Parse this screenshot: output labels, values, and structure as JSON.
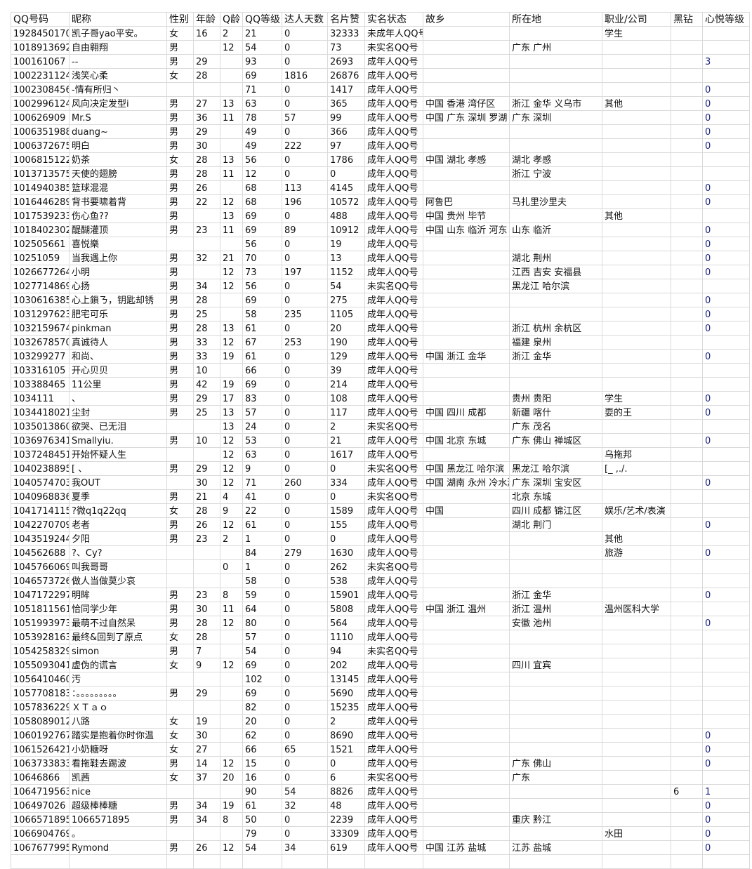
{
  "sheet": {
    "headers": [
      "QQ号码",
      "昵称",
      "性别",
      "年龄",
      "Q龄",
      "QQ等级",
      "达人天数",
      "名片赞",
      "实名状态",
      "故乡",
      "所在地",
      "职业/公司",
      "黑钻",
      "心悦等级"
    ],
    "rows": [
      [
        "1928450170",
        "凯子哥yao平安。",
        "女",
        "16",
        "2",
        "21",
        "0",
        "32333",
        "未成年人QQ号",
        "",
        "",
        "学生",
        "",
        ""
      ],
      [
        "1018913692",
        "自由翱翔",
        "男",
        "",
        "12",
        "54",
        "0",
        "73",
        "未实名QQ号",
        "",
        "广东 广州",
        "",
        "",
        ""
      ],
      [
        "100161067",
        "--",
        "男",
        "29",
        "",
        "93",
        "0",
        "2693",
        "成年人QQ号",
        "",
        "",
        "",
        "",
        "3"
      ],
      [
        "1002231124",
        "浅笑心柔",
        "女",
        "28",
        "",
        "69",
        "1816",
        "26876",
        "成年人QQ号",
        "",
        "",
        "",
        "",
        ""
      ],
      [
        "1002308456",
        "-情有所归丶",
        "",
        "",
        "",
        "71",
        "0",
        "1417",
        "成年人QQ号",
        "",
        "",
        "",
        "",
        "0"
      ],
      [
        "1002996124",
        "风向决定发型i",
        "男",
        "27",
        "13",
        "63",
        "0",
        "365",
        "成年人QQ号",
        "中国 香港 湾仔区",
        "浙江 金华 义乌市",
        "其他",
        "",
        "0"
      ],
      [
        "100626909",
        "Mr.S",
        "男",
        "36",
        "11",
        "78",
        "57",
        "99",
        "成年人QQ号",
        "中国 广东 深圳 罗湖",
        "广东 深圳",
        "",
        "",
        "0"
      ],
      [
        "1006351988",
        "duang~",
        "男",
        "29",
        "",
        "49",
        "0",
        "366",
        "成年人QQ号",
        "",
        "",
        "",
        "",
        "0"
      ],
      [
        "1006372675",
        "明白",
        "男",
        "30",
        "",
        "49",
        "222",
        "97",
        "成年人QQ号",
        "",
        "",
        "",
        "",
        "0"
      ],
      [
        "1006815122",
        "奶茶",
        "女",
        "28",
        "13",
        "56",
        "0",
        "1786",
        "成年人QQ号",
        "中国 湖北 孝感",
        "湖北 孝感",
        "",
        "",
        ""
      ],
      [
        "1013713575",
        "天使的翅膀",
        "男",
        "28",
        "11",
        "12",
        "0",
        "0",
        "成年人QQ号",
        "",
        "浙江 宁波",
        "",
        "",
        ""
      ],
      [
        "1014940385",
        "篮球混混",
        "男",
        "26",
        "",
        "68",
        "113",
        "4145",
        "成年人QQ号",
        "",
        "",
        "",
        "",
        "0"
      ],
      [
        "1016446289",
        "背书要啸着背",
        "男",
        "22",
        "12",
        "68",
        "196",
        "10572",
        "成年人QQ号",
        "阿鲁巴",
        "马扎里沙里夫",
        "",
        "",
        "0"
      ],
      [
        "1017539233",
        "伤心鱼??",
        "男",
        "",
        "13",
        "69",
        "0",
        "488",
        "成年人QQ号",
        "中国 贵州 毕节",
        "",
        "其他",
        "",
        ""
      ],
      [
        "1018402302",
        "醍醐灌顶",
        "男",
        "23",
        "11",
        "69",
        "89",
        "10912",
        "成年人QQ号",
        "中国 山东 临沂 河东",
        "山东 临沂",
        "",
        "",
        "0"
      ],
      [
        "102505661",
        "喜悦樂",
        "",
        "",
        "",
        "56",
        "0",
        "19",
        "成年人QQ号",
        "",
        "",
        "",
        "",
        "0"
      ],
      [
        "10251059",
        "当我遇上你",
        "男",
        "32",
        "21",
        "70",
        "0",
        "13",
        "成年人QQ号",
        "",
        "湖北 荆州",
        "",
        "",
        "0"
      ],
      [
        "1026677264",
        "小明",
        "男",
        "",
        "12",
        "73",
        "197",
        "1152",
        "成年人QQ号",
        "",
        "江西 吉安 安福县",
        "",
        "",
        "0"
      ],
      [
        "1027714869",
        "心扬",
        "男",
        "34",
        "12",
        "56",
        "0",
        "54",
        "未实名QQ号",
        "",
        "黑龙江 哈尔滨",
        "",
        "",
        ""
      ],
      [
        "1030616385",
        "心上鎖ㄋ，钥匙却锈",
        "男",
        "28",
        "",
        "69",
        "0",
        "275",
        "成年人QQ号",
        "",
        "",
        "",
        "",
        "0"
      ],
      [
        "1031297623",
        "肥宅可乐",
        "男",
        "25",
        "",
        "58",
        "235",
        "1105",
        "成年人QQ号",
        "",
        "",
        "",
        "",
        "0"
      ],
      [
        "1032159674",
        "pinkman",
        "男",
        "28",
        "13",
        "61",
        "0",
        "20",
        "成年人QQ号",
        "",
        "浙江 杭州 余杭区",
        "",
        "",
        "0"
      ],
      [
        "1032678570",
        "真诚待人",
        "男",
        "33",
        "12",
        "67",
        "253",
        "190",
        "成年人QQ号",
        "",
        "福建 泉州",
        "",
        "",
        ""
      ],
      [
        "103299277",
        "  和尚、",
        "男",
        "33",
        "19",
        "61",
        "0",
        "129",
        "成年人QQ号",
        "中国 浙江 金华",
        "浙江 金华",
        "",
        "",
        "0"
      ],
      [
        "103316105",
        "开心贝贝",
        "男",
        "10",
        "",
        "66",
        "0",
        "39",
        "成年人QQ号",
        "",
        "",
        "",
        "",
        ""
      ],
      [
        "103388465",
        "11公里",
        "男",
        "42",
        "19",
        "69",
        "0",
        "214",
        "成年人QQ号",
        "",
        "",
        "",
        "",
        ""
      ],
      [
        "1034111",
        "、",
        "男",
        "29",
        "17",
        "83",
        "0",
        "108",
        "成年人QQ号",
        "",
        "贵州 贵阳",
        "学生",
        "",
        "0"
      ],
      [
        "1034418021",
        "尘封",
        "男",
        "25",
        "13",
        "57",
        "0",
        "117",
        "成年人QQ号",
        "中国 四川 成都",
        "新疆 喀什",
        "耍的王",
        "",
        "0"
      ],
      [
        "1035013860",
        "欲哭、已无泪",
        "",
        "",
        "13",
        "24",
        "0",
        "2",
        "未实名QQ号",
        "",
        "广东 茂名",
        "",
        "",
        ""
      ],
      [
        "1036976341",
        " Smallyiu.",
        "男",
        "10",
        "12",
        "53",
        "0",
        "21",
        "成年人QQ号",
        "中国 北京 东城",
        "广东 佛山 禅城区",
        "",
        "",
        "0"
      ],
      [
        "1037248451",
        "开始怀疑人生",
        "",
        "",
        "12",
        "63",
        "0",
        "1617",
        "成年人QQ号",
        "",
        "",
        "乌拖邦",
        "",
        ""
      ],
      [
        "1040238895",
        "  [ 、",
        "男",
        "29",
        "12",
        "9",
        "0",
        "0",
        "未实名QQ号",
        "中国 黑龙江 哈尔滨",
        "黑龙江 哈尔滨",
        "[_ ,./.",
        "",
        ""
      ],
      [
        "1040574703",
        "我OUT",
        "",
        "30",
        "12",
        "71",
        "260",
        "334",
        "成年人QQ号",
        "中国 湖南 永州 冷水滩",
        "广东 深圳 宝安区",
        "",
        "",
        "0"
      ],
      [
        "1040968836",
        "夏季",
        "男",
        "21",
        "4",
        "41",
        "0",
        "0",
        "未实名QQ号",
        "",
        "北京 东城",
        "",
        "",
        ""
      ],
      [
        "1041714115",
        "?微q1q22qq",
        "女",
        "28",
        "9",
        "22",
        "0",
        "1589",
        "成年人QQ号",
        "中国",
        "四川 成都 锦江区",
        "娱乐/艺术/表演",
        "",
        ""
      ],
      [
        "1042270709",
        "老者",
        "男",
        "26",
        "12",
        "61",
        "0",
        "155",
        "成年人QQ号",
        "",
        "湖北 荆门",
        "",
        "",
        "0"
      ],
      [
        "1043519244",
        "夕阳",
        "男",
        "23",
        "2",
        "1",
        "0",
        "0",
        "成年人QQ号",
        "",
        "",
        "其他",
        "",
        ""
      ],
      [
        "104562688",
        "?、Cy?",
        "",
        "",
        "",
        "84",
        "279",
        "1630",
        "成年人QQ号",
        "",
        "",
        "旅游",
        "",
        "0"
      ],
      [
        "1045766069",
        "叫我哥哥",
        "",
        "",
        "0",
        "1",
        "0",
        "262",
        "未实名QQ号",
        "",
        "",
        "",
        "",
        ""
      ],
      [
        "1046573726",
        "做人当做莫少哀",
        "",
        "",
        "",
        "58",
        "0",
        "538",
        "成年人QQ号",
        "",
        "",
        "",
        "",
        ""
      ],
      [
        "1047172297",
        "明眸",
        "男",
        "23",
        "8",
        "59",
        "0",
        "15901",
        "成年人QQ号",
        "",
        "浙江 金华",
        "",
        "",
        "0"
      ],
      [
        "1051811561",
        "恰同学少年",
        "男",
        "30",
        "11",
        "64",
        "0",
        "5808",
        "成年人QQ号",
        "中国 浙江 温州",
        "浙江 温州",
        "温州医科大学",
        "",
        ""
      ],
      [
        "1051993973",
        "最萌不过自然呆",
        "男",
        "28",
        "12",
        "80",
        "0",
        "564",
        "成年人QQ号",
        "",
        "安徽 池州",
        "",
        "",
        "0"
      ],
      [
        "1053928163",
        "最终&回到了原点",
        "女",
        "28",
        "",
        "57",
        "0",
        "1110",
        "成年人QQ号",
        "",
        "",
        "",
        "",
        ""
      ],
      [
        "1054258329",
        "simon",
        "男",
        "7",
        "",
        "54",
        "0",
        "94",
        "未实名QQ号",
        "",
        "",
        "",
        "",
        ""
      ],
      [
        "1055093041",
        "虚伪的谎言",
        "女",
        "9",
        "12",
        "69",
        "0",
        "202",
        "成年人QQ号",
        "",
        "四川 宜宾",
        "",
        "",
        ""
      ],
      [
        "1056410460",
        "汚",
        "",
        "",
        "",
        "102",
        "0",
        "13145",
        "成年人QQ号",
        "",
        "",
        "",
        "",
        ""
      ],
      [
        "1057708183",
        "：。。。。。。。。。",
        "男",
        "29",
        "",
        "69",
        "0",
        "5690",
        "成年人QQ号",
        "",
        "",
        "",
        "",
        ""
      ],
      [
        "1057836229",
        "ＸＴａｏ",
        "",
        "",
        "",
        "82",
        "0",
        "15235",
        "成年人QQ号",
        "",
        "",
        "",
        "",
        ""
      ],
      [
        "1058089012",
        "八路",
        "女",
        "19",
        "",
        "20",
        "0",
        "2",
        "成年人QQ号",
        "",
        "",
        "",
        "",
        ""
      ],
      [
        "1060192767",
        "踏实是抱着你时你温",
        "女",
        "30",
        "",
        "62",
        "0",
        "8690",
        "成年人QQ号",
        "",
        "",
        "",
        "",
        "0"
      ],
      [
        "1061526421",
        "小奶糖呀",
        "女",
        "27",
        "",
        "66",
        "65",
        "1521",
        "成年人QQ号",
        "",
        "",
        "",
        "",
        "0"
      ],
      [
        "1063733833",
        "看拖鞋去踢波",
        "男",
        "14",
        "12",
        "15",
        "0",
        "0",
        "成年人QQ号",
        "",
        "广东 佛山",
        "",
        "",
        "0"
      ],
      [
        "10646866",
        "凯茜",
        "女",
        "37",
        "20",
        "16",
        "0",
        "6",
        "未实名QQ号",
        "",
        "广东",
        "",
        "",
        ""
      ],
      [
        "1064719563",
        "nice",
        "",
        "",
        "",
        "90",
        "54",
        "8826",
        "成年人QQ号",
        "",
        "",
        "",
        "6",
        "1"
      ],
      [
        "106497026",
        "超级棒棒糖",
        "男",
        "34",
        "19",
        "61",
        "32",
        "48",
        "成年人QQ号",
        "",
        "",
        "",
        "",
        "0"
      ],
      [
        "1066571895",
        "1066571895",
        "男",
        "34",
        "8",
        "50",
        "0",
        "2239",
        "成年人QQ号",
        "",
        "重庆 黔江",
        "",
        "",
        "0"
      ],
      [
        "1066904769",
        "。",
        "",
        "",
        "",
        "79",
        "0",
        "33309",
        "成年人QQ号",
        "",
        "",
        "水田",
        "",
        "0"
      ],
      [
        "1067677995",
        "Rymond",
        "男",
        "26",
        "12",
        "54",
        "34",
        "619",
        "成年人QQ号",
        "中国 江苏 盐城",
        "江苏 盐城",
        "",
        "",
        "0"
      ]
    ]
  }
}
